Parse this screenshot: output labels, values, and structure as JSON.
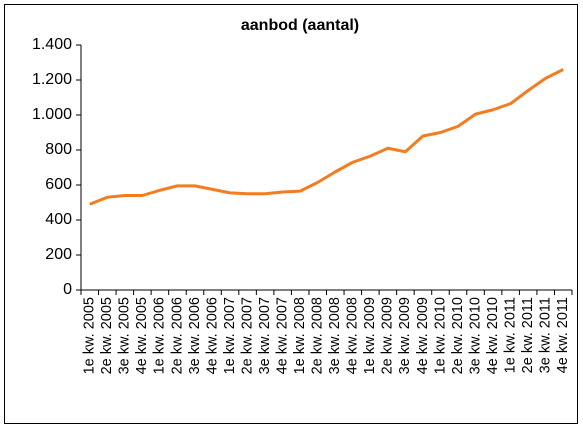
{
  "chart_data": {
    "type": "line",
    "title": "aanbod (aantal)",
    "categories": [
      "1e kw. 2005",
      "2e kw. 2005",
      "3e kw. 2005",
      "4e kw. 2005",
      "1e kw. 2006",
      "2e kw. 2006",
      "3e kw. 2006",
      "4e kw. 2006",
      "1e kw. 2007",
      "2e kw. 2007",
      "3e kw. 2007",
      "4e kw. 2007",
      "1e kw. 2008",
      "2e kw. 2008",
      "3e kw. 2008",
      "4e kw. 2008",
      "1e kw. 2009",
      "2e kw. 2009",
      "3e kw. 2009",
      "4e kw. 2009",
      "1e kw. 2010",
      "2e kw. 2010",
      "3e kw. 2010",
      "4e kw. 2010",
      "1e kw. 2011",
      "2e kw. 2011",
      "3e kw. 2011",
      "4e kw. 2011"
    ],
    "series": [
      {
        "name": "aanbod",
        "color": "#f47c20",
        "values": [
          490,
          530,
          540,
          540,
          570,
          595,
          595,
          575,
          555,
          550,
          550,
          560,
          565,
          615,
          675,
          730,
          765,
          810,
          790,
          880,
          900,
          935,
          1005,
          1030,
          1065,
          1140,
          1210,
          1260
        ]
      }
    ],
    "ylim": [
      0,
      1400
    ],
    "yticks": [
      0,
      200,
      400,
      600,
      800,
      {
        "value": 1000,
        "label": "1.000"
      },
      {
        "value": 1200,
        "label": "1.200"
      },
      {
        "value": 1400,
        "label": "1.400"
      }
    ],
    "grid": false
  }
}
